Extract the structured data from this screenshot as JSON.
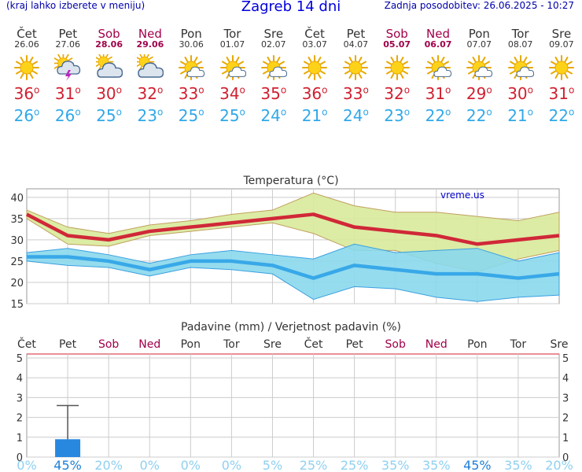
{
  "header": {
    "hint": "(kraj lahko izberete v meniju)",
    "title": "Zagreb 14 dni",
    "updated": "Zadnja posodobitev: 26.06.2025 - 10:27"
  },
  "days": [
    {
      "name": "Čet",
      "date": "26.06",
      "icon": "sun-icon",
      "max": "36",
      "min": "26",
      "weekend": false
    },
    {
      "name": "Pet",
      "date": "27.06",
      "icon": "thunderstorm-icon",
      "max": "31",
      "min": "26",
      "weekend": false
    },
    {
      "name": "Sob",
      "date": "28.06",
      "icon": "cloudy-sun-icon",
      "max": "30",
      "min": "25",
      "weekend": true
    },
    {
      "name": "Ned",
      "date": "29.06",
      "icon": "cloudy-sun-icon",
      "max": "32",
      "min": "23",
      "weekend": true
    },
    {
      "name": "Pon",
      "date": "30.06",
      "icon": "partly-cloudy-icon",
      "max": "33",
      "min": "25",
      "weekend": false
    },
    {
      "name": "Tor",
      "date": "01.07",
      "icon": "partly-cloudy-icon",
      "max": "34",
      "min": "25",
      "weekend": false
    },
    {
      "name": "Sre",
      "date": "02.07",
      "icon": "partly-cloudy-icon",
      "max": "35",
      "min": "24",
      "weekend": false
    },
    {
      "name": "Čet",
      "date": "03.07",
      "icon": "sun-icon",
      "max": "36",
      "min": "21",
      "weekend": false
    },
    {
      "name": "Pet",
      "date": "04.07",
      "icon": "sun-icon",
      "max": "33",
      "min": "24",
      "weekend": false
    },
    {
      "name": "Sob",
      "date": "05.07",
      "icon": "sun-icon",
      "max": "32",
      "min": "23",
      "weekend": true
    },
    {
      "name": "Ned",
      "date": "06.07",
      "icon": "partly-cloudy-icon",
      "max": "31",
      "min": "22",
      "weekend": true
    },
    {
      "name": "Pon",
      "date": "07.07",
      "icon": "partly-cloudy-icon",
      "max": "29",
      "min": "22",
      "weekend": false
    },
    {
      "name": "Tor",
      "date": "08.07",
      "icon": "partly-cloudy-icon",
      "max": "30",
      "min": "21",
      "weekend": false
    },
    {
      "name": "Sre",
      "date": "09.07",
      "icon": "sun-icon",
      "max": "31",
      "min": "22",
      "weekend": false
    }
  ],
  "degree_symbol": "o",
  "chart_data": [
    {
      "type": "line",
      "title": "Temperatura (°C)",
      "watermark": "vreme.us",
      "categories": [
        "Čet",
        "Pet",
        "Sob",
        "Ned",
        "Pon",
        "Tor",
        "Sre",
        "Čet",
        "Pet",
        "Sob",
        "Ned",
        "Pon",
        "Tor",
        "Sre"
      ],
      "ylim": [
        15,
        42
      ],
      "yticks": [
        15,
        20,
        25,
        30,
        35,
        40
      ],
      "grid": true,
      "series": [
        {
          "role": "max",
          "values": [
            36,
            31,
            30,
            32,
            33,
            34,
            35,
            36,
            33,
            32,
            31,
            29,
            30,
            31
          ],
          "color": "#d02838"
        },
        {
          "role": "max-range-upper",
          "values": [
            37,
            33,
            31.5,
            33.5,
            34.5,
            36,
            37,
            41,
            38,
            36.5,
            36.5,
            35.5,
            34.5,
            36.5
          ],
          "color": "#d8ea9a"
        },
        {
          "role": "max-range-lower",
          "values": [
            35,
            29,
            28.5,
            31,
            32,
            33,
            34,
            31.5,
            27.5,
            27.5,
            24.5,
            22.5,
            25.5,
            27.5
          ],
          "color": "#d8ea9a"
        },
        {
          "role": "min",
          "values": [
            26,
            26,
            25,
            23,
            25,
            25,
            24,
            21,
            24,
            23,
            22,
            22,
            21,
            22
          ],
          "color": "#38a8e8"
        },
        {
          "role": "min-range-upper",
          "values": [
            27,
            28,
            26.5,
            24.5,
            26.5,
            27.5,
            26.5,
            25.5,
            29,
            27,
            27.5,
            28,
            25,
            27
          ],
          "color": "#8ad8ec"
        },
        {
          "role": "min-range-lower",
          "values": [
            25,
            24,
            23.5,
            21.5,
            23.5,
            23,
            22,
            16,
            19,
            18.5,
            16.5,
            15.5,
            16.5,
            17
          ],
          "color": "#8ad8ec"
        }
      ]
    },
    {
      "type": "bar",
      "title": "Padavine (mm) / Verjetnost padavin (%)",
      "categories": [
        "Čet",
        "Pet",
        "Sob",
        "Ned",
        "Pon",
        "Tor",
        "Sre",
        "Čet",
        "Pet",
        "Sob",
        "Ned",
        "Pon",
        "Tor",
        "Sre"
      ],
      "weekend": [
        false,
        false,
        true,
        true,
        false,
        false,
        false,
        false,
        false,
        true,
        true,
        false,
        false,
        false
      ],
      "ylim": [
        0,
        5.2
      ],
      "yticks": [
        0,
        1,
        2,
        3,
        4,
        5
      ],
      "precip_mm": [
        0,
        0.9,
        0,
        0,
        0,
        0,
        0,
        0,
        0,
        0,
        0,
        0,
        0,
        0
      ],
      "precip_max_mm": [
        0,
        2.6,
        0,
        0,
        0,
        0,
        0,
        0,
        0,
        0,
        0,
        0,
        0,
        0
      ],
      "probability": [
        "0%",
        "45%",
        "20%",
        "0%",
        "0%",
        "0%",
        "5%",
        "25%",
        "25%",
        "35%",
        "35%",
        "45%",
        "35%",
        "20%"
      ],
      "bar_color": "#2888e0"
    }
  ]
}
